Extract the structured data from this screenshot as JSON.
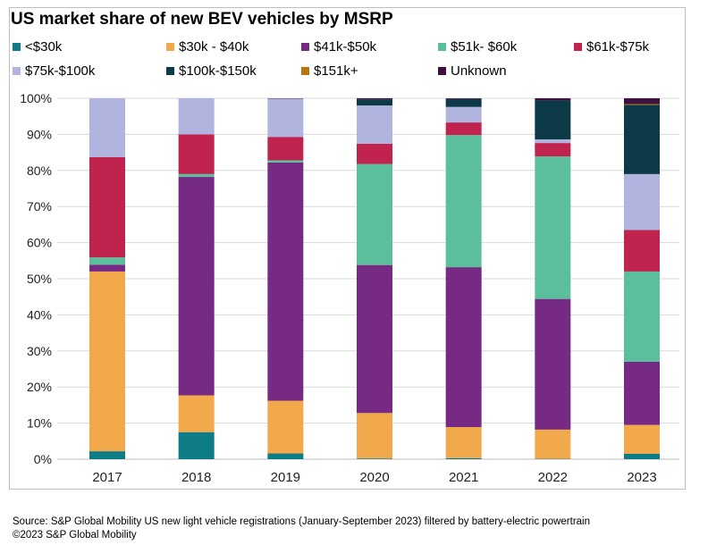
{
  "chart_data": {
    "type": "bar",
    "stacked": true,
    "title": "US market share of new BEV vehicles by MSRP",
    "xlabel": "",
    "ylabel": "",
    "ylim": [
      0,
      100
    ],
    "y_ticks": [
      "0%",
      "10%",
      "20%",
      "30%",
      "40%",
      "50%",
      "60%",
      "70%",
      "80%",
      "90%",
      "100%"
    ],
    "grid": true,
    "legend_position": "top",
    "categories": [
      "2017",
      "2018",
      "2019",
      "2020",
      "2021",
      "2022",
      "2023"
    ],
    "series": [
      {
        "name": "<$30k",
        "color": "#0e7c86",
        "values": [
          2.2,
          7.5,
          1.6,
          0.2,
          0.3,
          0.1,
          1.5
        ]
      },
      {
        "name": "$30k - $40k",
        "color": "#f2a94b",
        "values": [
          49.8,
          10.2,
          14.6,
          12.6,
          8.6,
          8.1,
          8.0
        ]
      },
      {
        "name": "$41k-$50k",
        "color": "#762a83",
        "values": [
          1.9,
          60.5,
          66.0,
          41.0,
          44.3,
          36.2,
          17.5
        ]
      },
      {
        "name": "$51k- $60k",
        "color": "#5bbf9e",
        "values": [
          2.0,
          0.8,
          0.6,
          28.0,
          36.6,
          39.5,
          25.0
        ]
      },
      {
        "name": "$61k-$75k",
        "color": "#c0234d",
        "values": [
          27.8,
          11.0,
          6.5,
          5.6,
          3.5,
          3.7,
          11.5
        ]
      },
      {
        "name": "$75k-$100k",
        "color": "#b0b4df",
        "values": [
          16.3,
          10.0,
          10.6,
          10.6,
          4.3,
          1.0,
          15.5
        ]
      },
      {
        "name": "$100k-$150k",
        "color": "#0d3a47",
        "values": [
          0,
          0,
          0,
          1.7,
          2.2,
          10.8,
          19.2
        ]
      },
      {
        "name": "$151k+",
        "color": "#b8740f",
        "values": [
          0,
          0,
          0,
          0,
          0,
          0,
          0.2
        ]
      },
      {
        "name": "Unknown",
        "color": "#3d1040",
        "values": [
          0,
          0,
          0.1,
          0.3,
          0.2,
          0.6,
          1.6
        ]
      }
    ]
  },
  "footer": {
    "source": "Source: S&P Global Mobility US new light vehicle registrations (January-September 2023) filtered by battery-electric powertrain",
    "copyright": "©2023 S&P Global Mobility"
  }
}
